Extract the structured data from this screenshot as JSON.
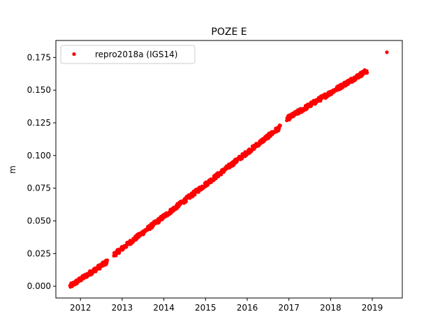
{
  "chart_data": {
    "type": "scatter",
    "title": "POZE E",
    "xlabel": "",
    "ylabel": "m",
    "xlim": [
      2011.41,
      2019.72
    ],
    "ylim": [
      -0.009,
      0.188
    ],
    "xticks": [
      2012,
      2013,
      2014,
      2015,
      2016,
      2017,
      2018,
      2019
    ],
    "xtick_labels": [
      "2012",
      "2013",
      "2014",
      "2015",
      "2016",
      "2017",
      "2018",
      "2019"
    ],
    "yticks": [
      0.0,
      0.025,
      0.05,
      0.075,
      0.1,
      0.125,
      0.15,
      0.175
    ],
    "ytick_labels": [
      "0.000",
      "0.025",
      "0.050",
      "0.075",
      "0.100",
      "0.125",
      "0.150",
      "0.175"
    ],
    "grid": false,
    "legend_position": "top-left",
    "series": [
      {
        "name": "repro2018a (IGS14)",
        "color": "#ff0000",
        "marker": "circle",
        "segments": [
          {
            "x_start": 2011.75,
            "x_end": 2012.65,
            "y_start": 0.0,
            "y_end": 0.019
          },
          {
            "x_start": 2012.8,
            "x_end": 2016.8,
            "y_start": 0.024,
            "y_end": 0.122
          },
          {
            "x_start": 2016.95,
            "x_end": 2018.88,
            "y_start": 0.128,
            "y_end": 0.165
          }
        ],
        "extra_points": [
          {
            "x": 2019.35,
            "y": 0.179
          }
        ]
      }
    ]
  }
}
